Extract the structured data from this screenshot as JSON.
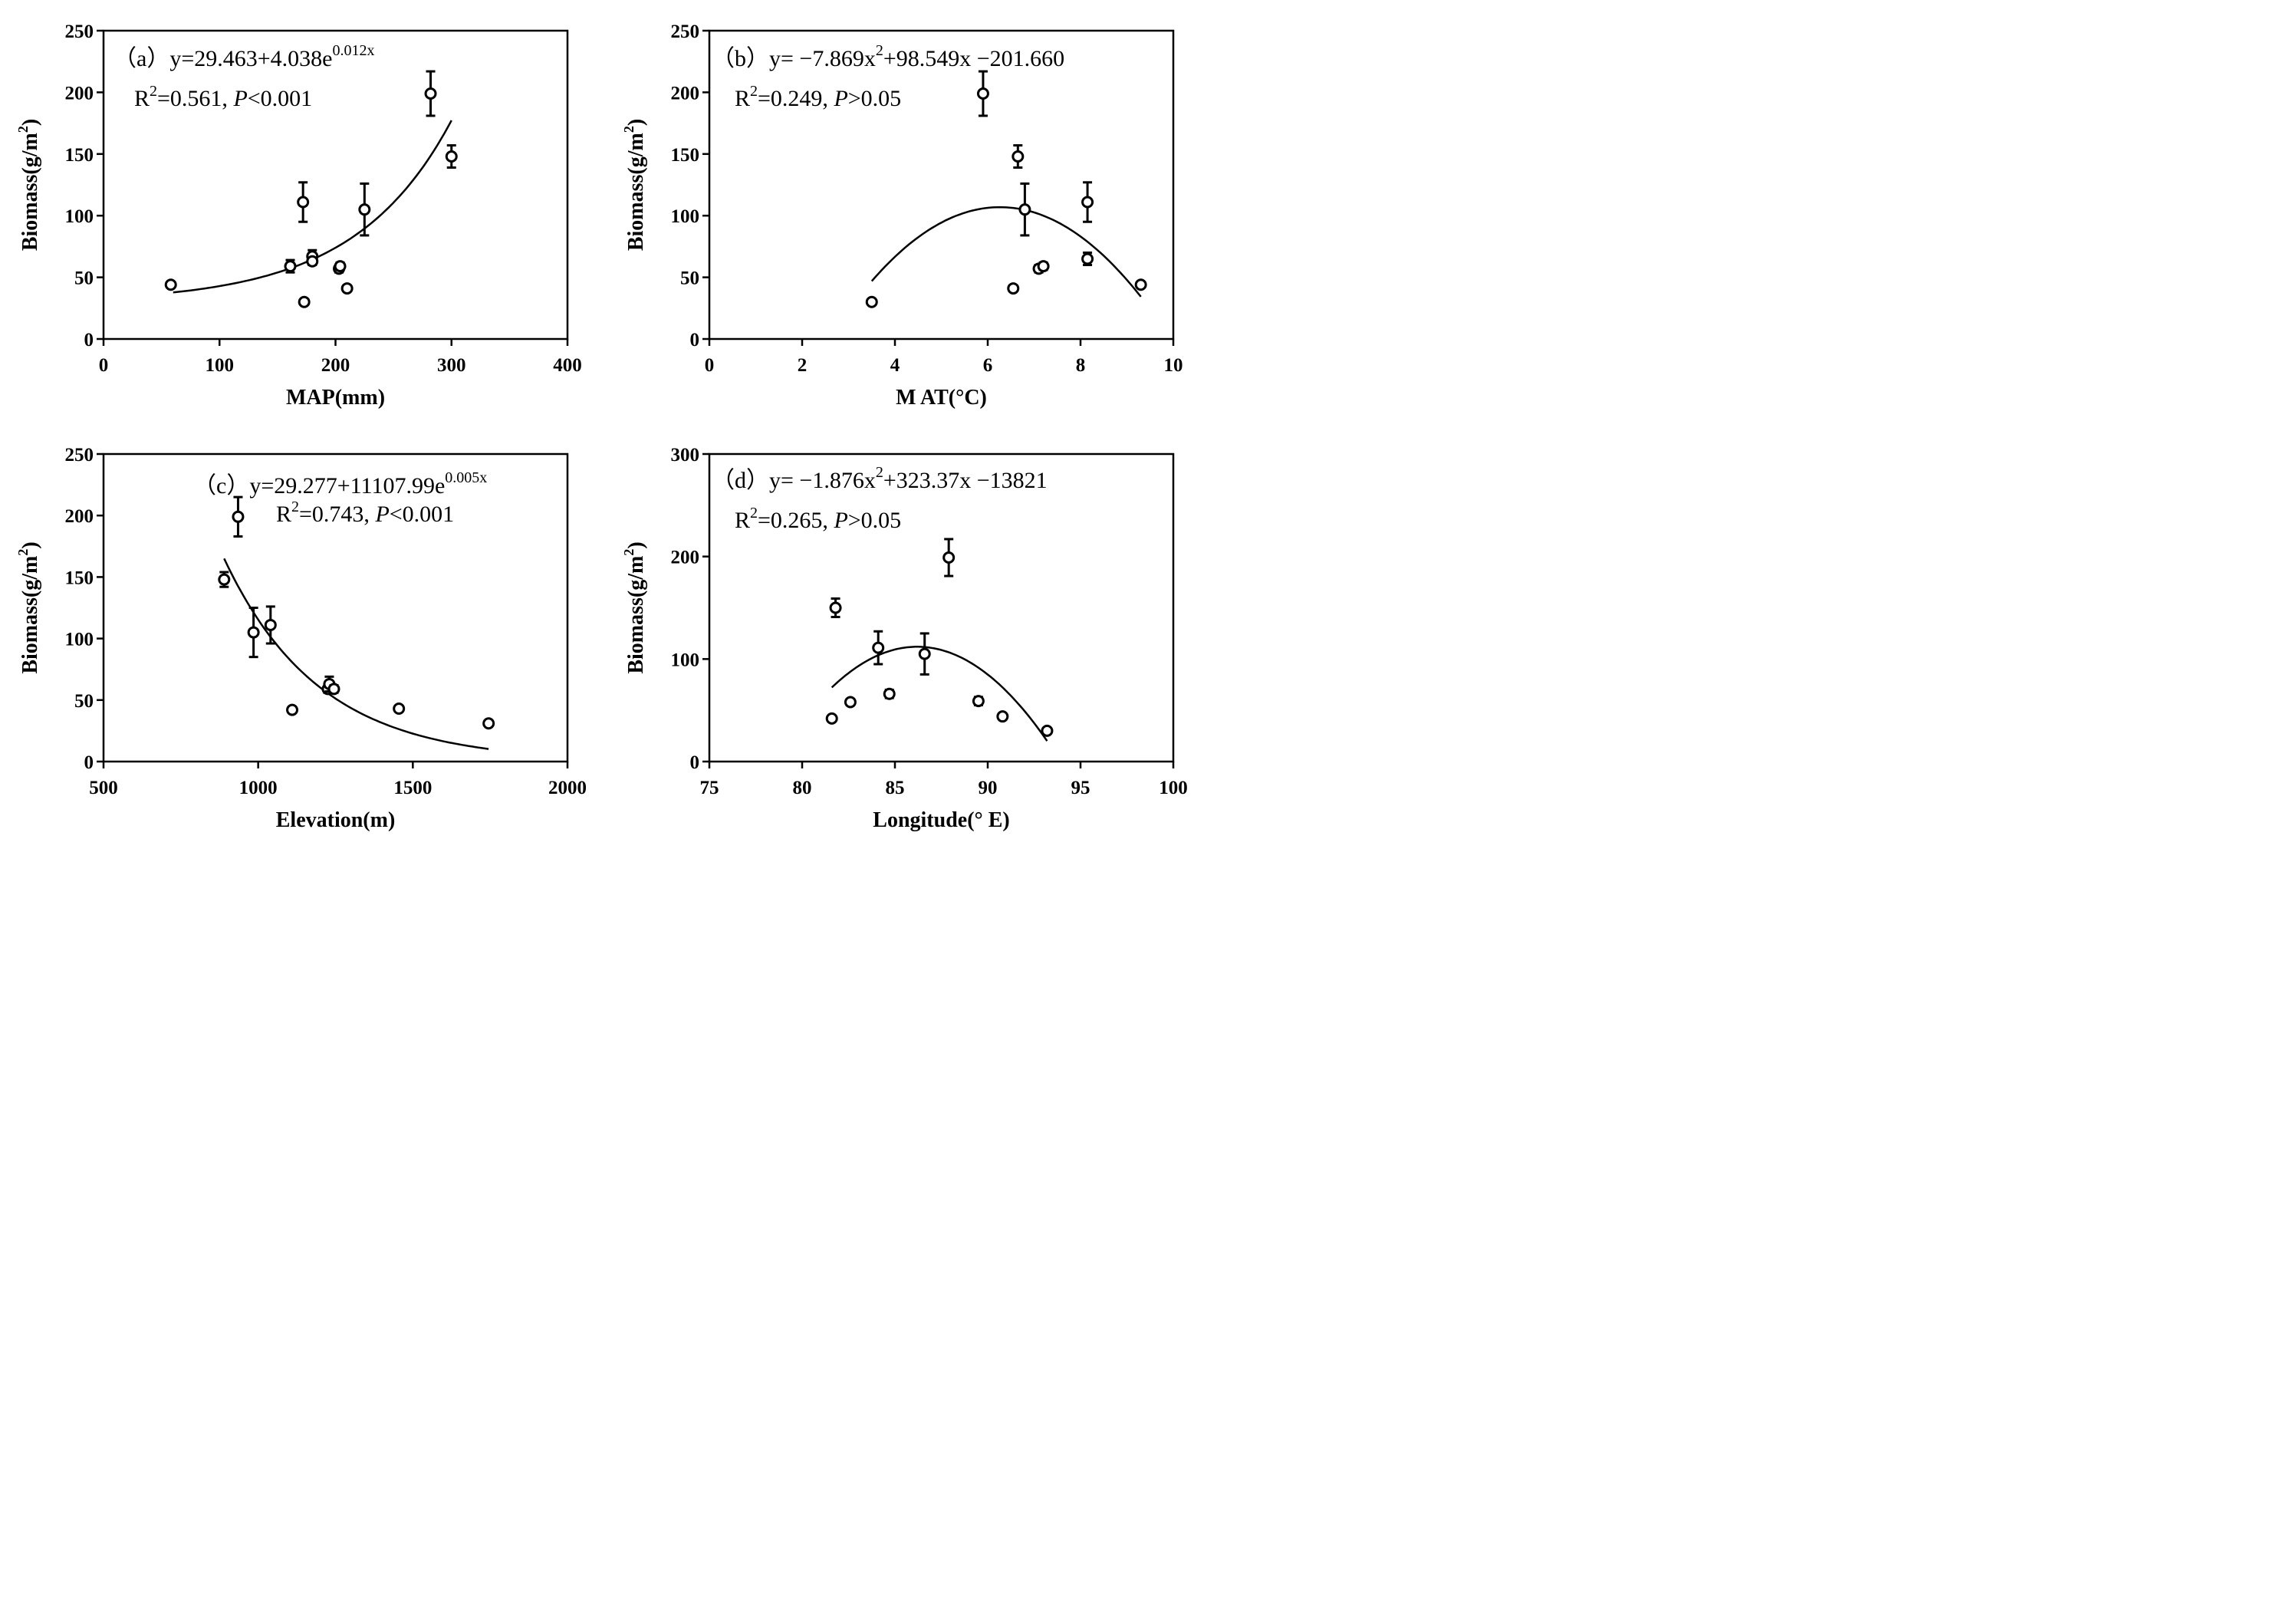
{
  "chart_data": [
    {
      "type": "scatter",
      "panel": "a",
      "xlabel": "MAP(mm)",
      "ylabel_main": "Biomass(g/m",
      "ylabel_sup": "2",
      "ylabel_close": ")",
      "xlim": [
        0,
        400
      ],
      "ylim": [
        0,
        250
      ],
      "xticks": [
        0,
        100,
        200,
        300,
        400
      ],
      "yticks": [
        0,
        50,
        100,
        150,
        200,
        250
      ],
      "eq_tag": "（a）",
      "eq_main": "y=29.463+4.038e",
      "eq_sup": "0.012x",
      "eq_tail": "",
      "r2_pre": "R",
      "r2_sup": "2",
      "r2_val": "=0.561, ",
      "p_sym": "P",
      "p_val": "<0.001",
      "fit": {
        "model": "exp",
        "a": 29.463,
        "b": 4.038,
        "k": 0.012,
        "x_range": [
          60,
          300
        ]
      },
      "points": [
        {
          "x": 58,
          "y": 44,
          "err": 2
        },
        {
          "x": 161,
          "y": 59,
          "err": 5
        },
        {
          "x": 172,
          "y": 111,
          "err": 16
        },
        {
          "x": 173,
          "y": 30,
          "err": 2
        },
        {
          "x": 180,
          "y": 67,
          "err": 5
        },
        {
          "x": 180,
          "y": 63,
          "err": 3
        },
        {
          "x": 203,
          "y": 57,
          "err": 3
        },
        {
          "x": 204,
          "y": 59,
          "err": 3
        },
        {
          "x": 210,
          "y": 41,
          "err": 2
        },
        {
          "x": 225,
          "y": 105,
          "err": 21
        },
        {
          "x": 282,
          "y": 199,
          "err": 18
        },
        {
          "x": 300,
          "y": 148,
          "err": 9
        }
      ]
    },
    {
      "type": "scatter",
      "panel": "b",
      "xlabel": "M AT(°C)",
      "ylabel_main": "Biomass(g/m",
      "ylabel_sup": "2",
      "ylabel_close": ")",
      "xlim": [
        0,
        10
      ],
      "ylim": [
        0,
        250
      ],
      "xticks": [
        0,
        2,
        4,
        6,
        8,
        10
      ],
      "yticks": [
        0,
        50,
        100,
        150,
        200,
        250
      ],
      "eq_tag": "（b）",
      "eq_main": "y= −7.869x",
      "eq_sup": "2",
      "eq_tail": "+98.549x −201.660",
      "r2_pre": "R",
      "r2_sup": "2",
      "r2_val": "=0.249, ",
      "p_sym": "P",
      "p_val": ">0.05",
      "fit": {
        "model": "quad",
        "a": -7.869,
        "b": 98.549,
        "c": -201.66,
        "x_range": [
          3.5,
          9.3
        ]
      },
      "points": [
        {
          "x": 3.5,
          "y": 30,
          "err": 2
        },
        {
          "x": 5.9,
          "y": 199,
          "err": 18
        },
        {
          "x": 6.55,
          "y": 41,
          "err": 2
        },
        {
          "x": 6.65,
          "y": 148,
          "err": 9
        },
        {
          "x": 6.8,
          "y": 105,
          "err": 21
        },
        {
          "x": 7.1,
          "y": 57,
          "err": 3
        },
        {
          "x": 7.2,
          "y": 59,
          "err": 3
        },
        {
          "x": 8.15,
          "y": 111,
          "err": 16
        },
        {
          "x": 8.15,
          "y": 65,
          "err": 5
        },
        {
          "x": 9.3,
          "y": 44,
          "err": 2
        }
      ]
    },
    {
      "type": "scatter",
      "panel": "c",
      "xlabel": "Elevation(m)",
      "ylabel_main": "Biomass(g/m",
      "ylabel_sup": "2",
      "ylabel_close": ")",
      "xlim": [
        500,
        2000
      ],
      "ylim": [
        0,
        250
      ],
      "xticks": [
        500,
        1000,
        1500,
        2000
      ],
      "yticks": [
        0,
        50,
        100,
        150,
        200,
        250
      ],
      "eq_tag": "（c）",
      "eq_main": "y=29.277+11107.99e",
      "eq_sup": "0.005x",
      "eq_tail": "",
      "r2_pre": "R",
      "r2_sup": "2",
      "r2_val": "=0.743, ",
      "p_sym": "P",
      "p_val": "<0.001",
      "fit": {
        "model": "decay",
        "A": 165,
        "B": 0,
        "k": 0.00325,
        "x0": 890,
        "x_range": [
          890,
          1745
        ]
      },
      "points": [
        {
          "x": 890,
          "y": 148,
          "err": 6
        },
        {
          "x": 935,
          "y": 199,
          "err": 16
        },
        {
          "x": 985,
          "y": 105,
          "err": 20
        },
        {
          "x": 1040,
          "y": 111,
          "err": 15
        },
        {
          "x": 1110,
          "y": 42,
          "err": 2
        },
        {
          "x": 1225,
          "y": 59,
          "err": 3
        },
        {
          "x": 1230,
          "y": 63,
          "err": 6
        },
        {
          "x": 1245,
          "y": 59,
          "err": 3
        },
        {
          "x": 1455,
          "y": 43,
          "err": 2
        },
        {
          "x": 1745,
          "y": 31,
          "err": 2
        }
      ]
    },
    {
      "type": "scatter",
      "panel": "d",
      "xlabel": "Longitude(° E)",
      "ylabel_main": "Biomass(g/m",
      "ylabel_sup": "2",
      "ylabel_close": ")",
      "xlim": [
        75,
        100
      ],
      "ylim": [
        0,
        300
      ],
      "xticks": [
        75,
        80,
        85,
        90,
        95,
        100
      ],
      "yticks": [
        0,
        100,
        200,
        300
      ],
      "eq_tag": "（d）",
      "eq_main": "y= −1.876x",
      "eq_sup": "2",
      "eq_tail": "+323.37x −13821",
      "r2_pre": "R",
      "r2_sup": "2",
      "r2_val": "=0.265, ",
      "p_sym": "P",
      "p_val": ">0.05",
      "fit": {
        "model": "vertex",
        "h": 86.2,
        "k": 112,
        "a": -1.876,
        "x_range": [
          81.6,
          93.2
        ]
      },
      "points": [
        {
          "x": 81.6,
          "y": 42,
          "err": 2
        },
        {
          "x": 81.8,
          "y": 150,
          "err": 9
        },
        {
          "x": 82.6,
          "y": 58,
          "err": 3
        },
        {
          "x": 84.1,
          "y": 111,
          "err": 16
        },
        {
          "x": 84.7,
          "y": 66,
          "err": 4
        },
        {
          "x": 86.6,
          "y": 105,
          "err": 20
        },
        {
          "x": 87.9,
          "y": 199,
          "err": 18
        },
        {
          "x": 89.5,
          "y": 59,
          "err": 4
        },
        {
          "x": 90.8,
          "y": 44,
          "err": 2
        },
        {
          "x": 93.2,
          "y": 30,
          "err": 2
        }
      ]
    }
  ]
}
